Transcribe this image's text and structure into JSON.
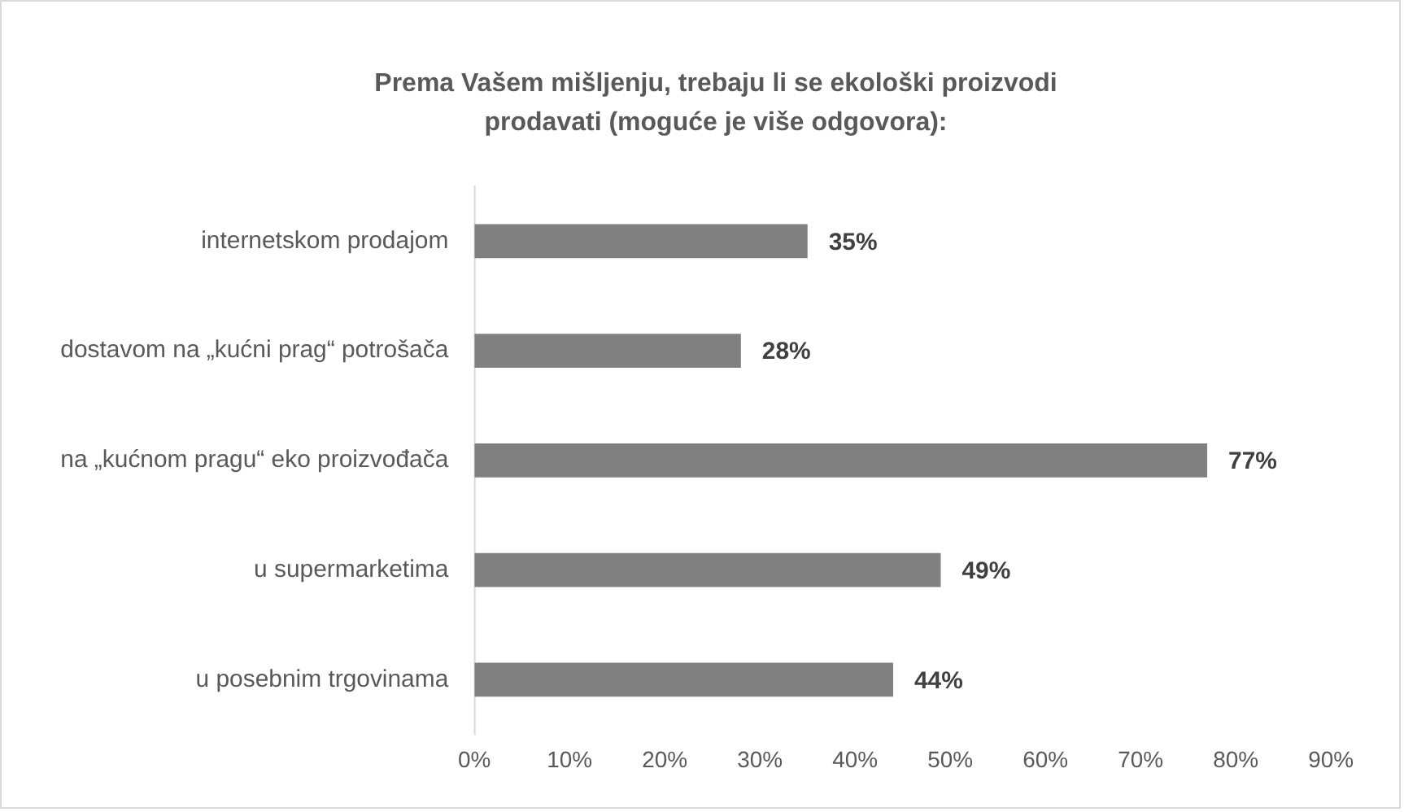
{
  "chart_data": {
    "type": "bar",
    "orientation": "horizontal",
    "title": "Prema Vašem mišljenju, trebaju li se ekološki proizvodi prodavati (moguće je više odgovora):",
    "categories": [
      "internetskom prodajom",
      "dostavom na „kućni prag“ potrošača",
      "na „kućnom pragu“ eko proizvođača",
      "u supermarketima",
      "u posebnim trgovinama"
    ],
    "values": [
      35,
      28,
      77,
      49,
      44
    ],
    "value_labels": [
      "35%",
      "28%",
      "77%",
      "49%",
      "44%"
    ],
    "color": "#808080",
    "xlim": [
      0,
      90
    ],
    "xticks": [
      {
        "value": 0,
        "label": "0%"
      },
      {
        "value": 10,
        "label": "10%"
      },
      {
        "value": 20,
        "label": "20%"
      },
      {
        "value": 30,
        "label": "30%"
      },
      {
        "value": 40,
        "label": "40%"
      },
      {
        "value": 50,
        "label": "50%"
      },
      {
        "value": 60,
        "label": "60%"
      },
      {
        "value": 70,
        "label": "70%"
      },
      {
        "value": 80,
        "label": "80%"
      },
      {
        "value": 90,
        "label": "90%"
      }
    ],
    "grid": false,
    "legend": false
  }
}
